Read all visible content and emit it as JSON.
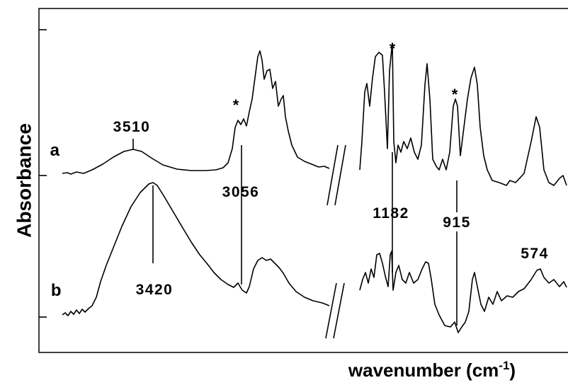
{
  "figure": {
    "y_label": "Absorbance",
    "x_label": {
      "text": "wavenumber (cm",
      "sup": "-1",
      "close": ")"
    },
    "traces": [
      {
        "label": "a"
      },
      {
        "label": "b"
      }
    ],
    "peaks": [
      {
        "label": "3510"
      },
      {
        "label": "3056"
      },
      {
        "label": "3420"
      },
      {
        "label": "1182"
      },
      {
        "label": "915"
      },
      {
        "label": "574"
      }
    ],
    "markers": [
      "*",
      "*",
      "*"
    ]
  }
}
